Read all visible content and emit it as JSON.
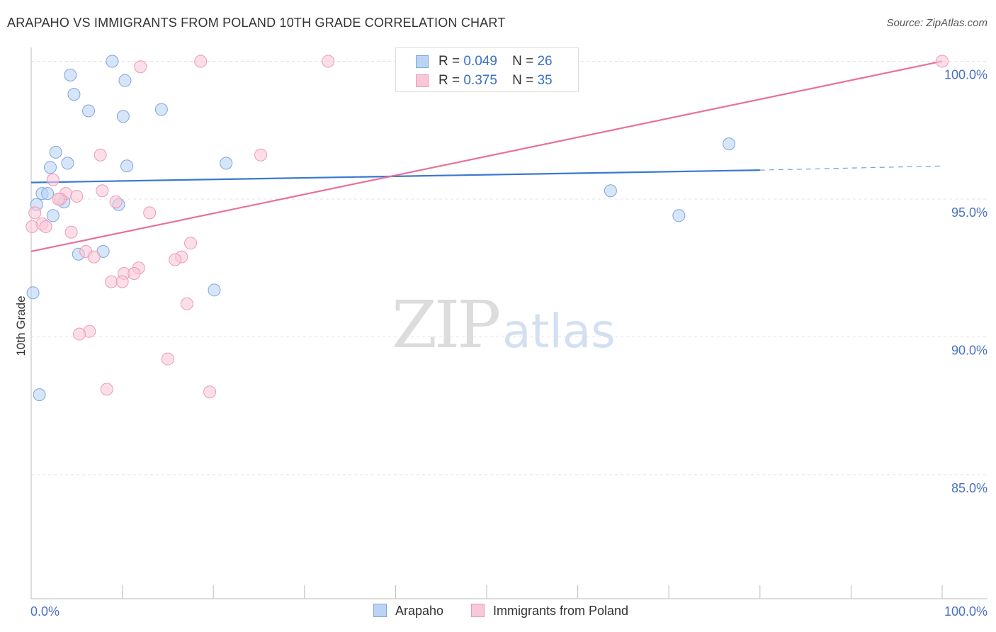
{
  "header": {
    "title": "ARAPAHO VS IMMIGRANTS FROM POLAND 10TH GRADE CORRELATION CHART",
    "source": "Source: ZipAtlas.com"
  },
  "watermark": {
    "zip": "ZIP",
    "atlas": "atlas"
  },
  "legend": {
    "r_label": "R =",
    "n_label": "N =",
    "rows": [
      {
        "r": "0.049",
        "n": "26"
      },
      {
        "r": "0.375",
        "n": "35"
      }
    ]
  },
  "colors": {
    "series1_fill": "#bcd4f4",
    "series1_stroke": "#7ca6e0",
    "series1_line": "#3a78d0",
    "series2_fill": "#f8c8d8",
    "series2_stroke": "#ec9ab8",
    "series2_line": "#e8709a",
    "tick_text": "#4a72c4",
    "grid": "#e2e2e2"
  },
  "chart_data": {
    "type": "scatter",
    "title": "ARAPAHO VS IMMIGRANTS FROM POLAND 10TH GRADE CORRELATION CHART",
    "xlabel": "",
    "ylabel": "10th Grade",
    "xlim": [
      0,
      100
    ],
    "ylim": [
      80.5,
      100.5
    ],
    "x_tick_labels": [
      "0.0%",
      "100.0%"
    ],
    "y_ticks": [
      {
        "value": 85,
        "label": "85.0%"
      },
      {
        "value": 90,
        "label": "90.0%"
      },
      {
        "value": 95,
        "label": "95.0%"
      },
      {
        "value": 100,
        "label": "100.0%"
      }
    ],
    "series": [
      {
        "name": "Arapaho",
        "r": 0.049,
        "n": 26,
        "trend": {
          "x0": 0,
          "y0": 95.6,
          "x1": 80,
          "y1": 96.05,
          "dash_to_x": 100,
          "dash_to_y": 96.2
        },
        "points": [
          {
            "x": 8.9,
            "y": 100.0
          },
          {
            "x": 4.3,
            "y": 99.5
          },
          {
            "x": 10.3,
            "y": 99.3
          },
          {
            "x": 4.7,
            "y": 98.8
          },
          {
            "x": 6.3,
            "y": 98.2
          },
          {
            "x": 14.3,
            "y": 98.25
          },
          {
            "x": 10.1,
            "y": 98.0
          },
          {
            "x": 2.7,
            "y": 96.7
          },
          {
            "x": 4.0,
            "y": 96.3
          },
          {
            "x": 2.1,
            "y": 96.15
          },
          {
            "x": 10.5,
            "y": 96.2
          },
          {
            "x": 21.4,
            "y": 96.3
          },
          {
            "x": 1.2,
            "y": 95.2
          },
          {
            "x": 1.8,
            "y": 95.2
          },
          {
            "x": 0.6,
            "y": 94.8
          },
          {
            "x": 3.6,
            "y": 94.9
          },
          {
            "x": 9.6,
            "y": 94.8
          },
          {
            "x": 2.4,
            "y": 94.4
          },
          {
            "x": 5.2,
            "y": 93.0
          },
          {
            "x": 7.9,
            "y": 93.1
          },
          {
            "x": 0.2,
            "y": 91.6
          },
          {
            "x": 20.1,
            "y": 91.7
          },
          {
            "x": 0.9,
            "y": 87.9
          },
          {
            "x": 76.6,
            "y": 97.0
          },
          {
            "x": 63.6,
            "y": 95.3
          },
          {
            "x": 71.1,
            "y": 94.4
          }
        ]
      },
      {
        "name": "Immigrants from Poland",
        "r": 0.375,
        "n": 35,
        "trend": {
          "x0": 0,
          "y0": 93.1,
          "x1": 100,
          "y1": 100.0
        },
        "points": [
          {
            "x": 18.6,
            "y": 100.0
          },
          {
            "x": 32.6,
            "y": 100.0
          },
          {
            "x": 12.0,
            "y": 99.8
          },
          {
            "x": 100.0,
            "y": 100.0
          },
          {
            "x": 7.6,
            "y": 96.6
          },
          {
            "x": 25.2,
            "y": 96.6
          },
          {
            "x": 2.4,
            "y": 95.7
          },
          {
            "x": 7.8,
            "y": 95.3
          },
          {
            "x": 3.8,
            "y": 95.2
          },
          {
            "x": 5.0,
            "y": 95.1
          },
          {
            "x": 3.2,
            "y": 95.0
          },
          {
            "x": 9.3,
            "y": 94.9
          },
          {
            "x": 0.4,
            "y": 94.5
          },
          {
            "x": 13.0,
            "y": 94.5
          },
          {
            "x": 1.2,
            "y": 94.1
          },
          {
            "x": 1.6,
            "y": 94.0
          },
          {
            "x": 4.4,
            "y": 93.8
          },
          {
            "x": 17.5,
            "y": 93.4
          },
          {
            "x": 6.0,
            "y": 93.1
          },
          {
            "x": 6.9,
            "y": 92.9
          },
          {
            "x": 16.5,
            "y": 92.9
          },
          {
            "x": 15.8,
            "y": 92.8
          },
          {
            "x": 11.8,
            "y": 92.5
          },
          {
            "x": 10.2,
            "y": 92.3
          },
          {
            "x": 11.3,
            "y": 92.3
          },
          {
            "x": 8.8,
            "y": 92.0
          },
          {
            "x": 10.0,
            "y": 92.0
          },
          {
            "x": 17.1,
            "y": 91.2
          },
          {
            "x": 6.4,
            "y": 90.2
          },
          {
            "x": 5.3,
            "y": 90.1
          },
          {
            "x": 15.0,
            "y": 89.2
          },
          {
            "x": 8.3,
            "y": 88.1
          },
          {
            "x": 19.6,
            "y": 88.0
          },
          {
            "x": 0.1,
            "y": 94.0
          },
          {
            "x": 3.0,
            "y": 95.0
          }
        ]
      }
    ]
  }
}
